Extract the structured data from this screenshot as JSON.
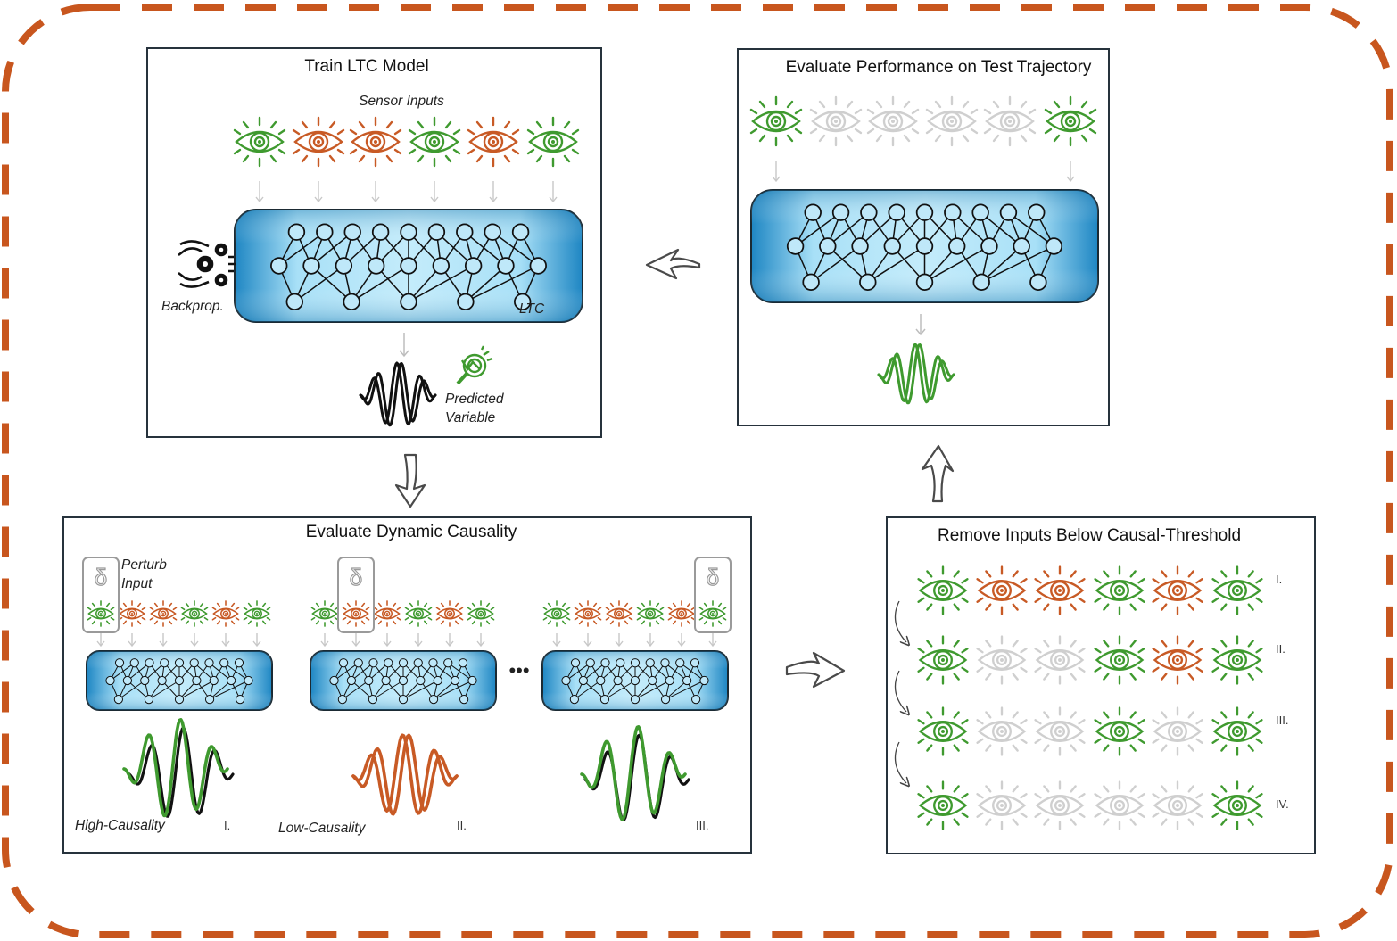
{
  "colors": {
    "green": "#3f9a2f",
    "orange": "#c85a25",
    "gray": "#cfcfcf",
    "border_dash": "#c8561e",
    "blue_dark": "#1e86c3",
    "blue_light": "#a8e0f7"
  },
  "panels": {
    "train": {
      "title": "Train LTC Model",
      "sensor_label": "Sensor Inputs",
      "sensor_states": [
        "green",
        "orange",
        "orange",
        "green",
        "orange",
        "green"
      ],
      "backprop_label": "Backprop.",
      "ltc_label": "LTC",
      "predicted_line1": "Predicted",
      "predicted_line2": "Variable",
      "icons": [
        "eye-icon",
        "gears-hands-icon",
        "magnifier-icon",
        "waveform-icon"
      ]
    },
    "evaluate_performance": {
      "title": "Evaluate Performance on Test Trajectory",
      "sensor_states": [
        "green",
        "gray",
        "gray",
        "gray",
        "gray",
        "green"
      ]
    },
    "causality": {
      "title": "Evaluate Dynamic Causality",
      "perturb_line1": "Perturb",
      "perturb_line2": "Input",
      "delta_symbol": "δ",
      "ellipsis": "•••",
      "groups": [
        {
          "states": [
            "green",
            "orange",
            "orange",
            "green",
            "orange",
            "green"
          ],
          "perturbed": 0,
          "numeral": "I.",
          "caption": "High-Causality"
        },
        {
          "states": [
            "green",
            "orange",
            "orange",
            "green",
            "orange",
            "green"
          ],
          "perturbed": 1,
          "numeral": "II.",
          "caption": "Low-Causality"
        },
        {
          "states": [
            "green",
            "orange",
            "orange",
            "green",
            "orange",
            "green"
          ],
          "perturbed": 5,
          "numeral": "III.",
          "caption": ""
        }
      ]
    },
    "remove": {
      "title": "Remove Inputs Below Causal-Threshold",
      "rows": [
        {
          "numeral": "I.",
          "states": [
            "green",
            "orange",
            "orange",
            "green",
            "orange",
            "green"
          ]
        },
        {
          "numeral": "II.",
          "states": [
            "green",
            "gray",
            "gray",
            "green",
            "orange",
            "green"
          ]
        },
        {
          "numeral": "III.",
          "states": [
            "green",
            "gray",
            "gray",
            "green",
            "gray",
            "green"
          ]
        },
        {
          "numeral": "IV.",
          "states": [
            "green",
            "gray",
            "gray",
            "gray",
            "gray",
            "green"
          ]
        }
      ]
    }
  }
}
